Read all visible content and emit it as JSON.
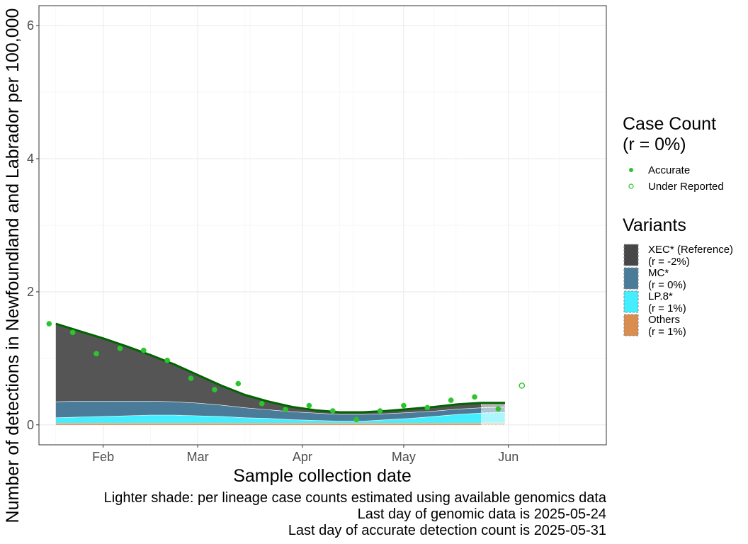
{
  "chart_data": {
    "type": "area",
    "xlabel": "Sample collection date",
    "ylabel": "Number of detections in Newfoundland and Labrador per 100,000",
    "x_ticks": [
      {
        "date": "2025-02-01",
        "label": "Feb"
      },
      {
        "date": "2025-03-01",
        "label": "Mar"
      },
      {
        "date": "2025-04-01",
        "label": "Apr"
      },
      {
        "date": "2025-05-01",
        "label": "May"
      },
      {
        "date": "2025-06-01",
        "label": "Jun"
      }
    ],
    "y_ticks": [
      0,
      2,
      4,
      6
    ],
    "xlim": [
      "2025-01-13",
      "2025-06-30"
    ],
    "ylim": [
      -0.3,
      6.3
    ],
    "grid": true,
    "dates": [
      "2025-01-18",
      "2025-01-25",
      "2025-02-01",
      "2025-02-08",
      "2025-02-15",
      "2025-02-22",
      "2025-03-01",
      "2025-03-08",
      "2025-03-15",
      "2025-03-22",
      "2025-03-29",
      "2025-04-05",
      "2025-04-12",
      "2025-04-19",
      "2025-04-26",
      "2025-05-03",
      "2025-05-10",
      "2025-05-17",
      "2025-05-24",
      "2025-05-31"
    ],
    "series": [
      {
        "name": "Others",
        "color": "#D98D4F",
        "values": [
          0.03,
          0.03,
          0.03,
          0.03,
          0.03,
          0.03,
          0.03,
          0.03,
          0.03,
          0.03,
          0.03,
          0.03,
          0.03,
          0.03,
          0.03,
          0.03,
          0.03,
          0.03,
          0.03,
          0.03
        ]
      },
      {
        "name": "LP.8*",
        "color": "#45EEFF",
        "values": [
          0.08,
          0.09,
          0.1,
          0.11,
          0.12,
          0.12,
          0.11,
          0.1,
          0.08,
          0.07,
          0.05,
          0.04,
          0.03,
          0.03,
          0.05,
          0.07,
          0.1,
          0.13,
          0.15,
          0.16
        ]
      },
      {
        "name": "MC*",
        "color": "#4A7C99",
        "values": [
          0.24,
          0.24,
          0.23,
          0.22,
          0.21,
          0.2,
          0.19,
          0.17,
          0.15,
          0.13,
          0.12,
          0.11,
          0.1,
          0.1,
          0.09,
          0.09,
          0.08,
          0.08,
          0.08,
          0.08
        ]
      },
      {
        "name": "XEC* (Reference)",
        "color": "#555555",
        "values": [
          1.17,
          1.05,
          0.94,
          0.82,
          0.69,
          0.56,
          0.42,
          0.29,
          0.19,
          0.12,
          0.07,
          0.04,
          0.03,
          0.03,
          0.04,
          0.05,
          0.06,
          0.07,
          0.07,
          0.06
        ]
      }
    ],
    "genomic_cutoff": "2025-05-24",
    "trend_line": {
      "color": "#006400"
    },
    "points": [
      {
        "date": "2025-01-16",
        "value": 1.52,
        "type": "Accurate"
      },
      {
        "date": "2025-01-23",
        "value": 1.39,
        "type": "Accurate"
      },
      {
        "date": "2025-01-30",
        "value": 1.07,
        "type": "Accurate"
      },
      {
        "date": "2025-02-06",
        "value": 1.15,
        "type": "Accurate"
      },
      {
        "date": "2025-02-13",
        "value": 1.12,
        "type": "Accurate"
      },
      {
        "date": "2025-02-20",
        "value": 0.97,
        "type": "Accurate"
      },
      {
        "date": "2025-02-27",
        "value": 0.7,
        "type": "Accurate"
      },
      {
        "date": "2025-03-06",
        "value": 0.53,
        "type": "Accurate"
      },
      {
        "date": "2025-03-13",
        "value": 0.62,
        "type": "Accurate"
      },
      {
        "date": "2025-03-20",
        "value": 0.32,
        "type": "Accurate"
      },
      {
        "date": "2025-03-27",
        "value": 0.23,
        "type": "Accurate"
      },
      {
        "date": "2025-04-03",
        "value": 0.29,
        "type": "Accurate"
      },
      {
        "date": "2025-04-10",
        "value": 0.21,
        "type": "Accurate"
      },
      {
        "date": "2025-04-17",
        "value": 0.08,
        "type": "Accurate"
      },
      {
        "date": "2025-04-24",
        "value": 0.21,
        "type": "Accurate"
      },
      {
        "date": "2025-05-01",
        "value": 0.29,
        "type": "Accurate"
      },
      {
        "date": "2025-05-08",
        "value": 0.26,
        "type": "Accurate"
      },
      {
        "date": "2025-05-15",
        "value": 0.37,
        "type": "Accurate"
      },
      {
        "date": "2025-05-22",
        "value": 0.42,
        "type": "Accurate"
      },
      {
        "date": "2025-05-29",
        "value": 0.24,
        "type": "Accurate"
      },
      {
        "date": "2025-06-05",
        "value": 0.59,
        "type": "Under Reported"
      }
    ],
    "point_color": "#2DC52D",
    "legend": {
      "case_count": {
        "title_line1": "Case Count",
        "title_line2": "(r = 0%)",
        "items": [
          {
            "label": "Accurate",
            "style": "filled"
          },
          {
            "label": "Under Reported",
            "style": "open"
          }
        ]
      },
      "variants": {
        "title": "Variants",
        "items": [
          {
            "label1": "XEC* (Reference)",
            "label2": "(r = -2%)",
            "color": "#474747"
          },
          {
            "label1": "MC*",
            "label2": "(r = 0%)",
            "color": "#4A7C99"
          },
          {
            "label1": "LP.8*",
            "label2": "(r = 1%)",
            "color": "#45EEFF"
          },
          {
            "label1": "Others",
            "label2": "(r = 1%)",
            "color": "#D98D4F"
          }
        ]
      }
    },
    "caption": [
      "Lighter shade: per lineage case counts estimated using available genomics data",
      "Last day of genomic data is 2025-05-24",
      "Last day of accurate detection count is 2025-05-31"
    ]
  }
}
